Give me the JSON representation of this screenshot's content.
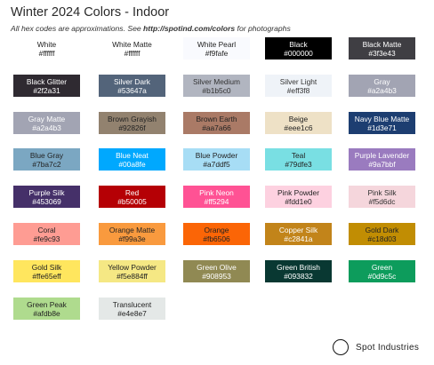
{
  "header": {
    "title": "Winter 2024 Colors - Indoor",
    "subtitle_pre": "All hex codes are approximations. See ",
    "subtitle_link": "http://spotind.com/colors",
    "subtitle_post": " for photographs"
  },
  "swatches": [
    {
      "name": "White",
      "hex": "#ffffff",
      "text": "#222222"
    },
    {
      "name": "White Matte",
      "hex": "#ffffff",
      "text": "#222222"
    },
    {
      "name": "White Pearl",
      "hex": "#f9fafe",
      "text": "#222222"
    },
    {
      "name": "Black",
      "hex": "#000000",
      "text": "#ffffff"
    },
    {
      "name": "Black Matte",
      "hex": "#3f3e43",
      "text": "#ffffff"
    },
    {
      "name": "Black Glitter",
      "hex": "#2f2a31",
      "text": "#ffffff"
    },
    {
      "name": "Silver Dark",
      "hex": "#53647a",
      "text": "#ffffff"
    },
    {
      "name": "Silver Medium",
      "hex": "#b1b5c0",
      "text": "#333333"
    },
    {
      "name": "Silver Light",
      "hex": "#eff3f8",
      "text": "#333333"
    },
    {
      "name": "Gray",
      "hex": "#a2a4b3",
      "text": "#ffffff"
    },
    {
      "name": "Gray Matte",
      "hex": "#a2a4b3",
      "text": "#ffffff"
    },
    {
      "name": "Brown Grayish",
      "hex": "#92826f",
      "text": "#222222"
    },
    {
      "name": "Brown Earth",
      "hex": "#aa7a66",
      "text": "#222222"
    },
    {
      "name": "Beige",
      "hex": "#eee1c6",
      "text": "#222222"
    },
    {
      "name": "Navy Blue Matte",
      "hex": "#1d3e71",
      "text": "#ffffff"
    },
    {
      "name": "Blue Gray",
      "hex": "#7ba7c2",
      "text": "#222222"
    },
    {
      "name": "Blue Neat",
      "hex": "#00a8fe",
      "text": "#ffffff"
    },
    {
      "name": "Blue Powder",
      "hex": "#a7ddf5",
      "text": "#222222"
    },
    {
      "name": "Teal",
      "hex": "#79dfe3",
      "text": "#222222"
    },
    {
      "name": "Purple Lavender",
      "hex": "#9a7bbf",
      "text": "#ffffff"
    },
    {
      "name": "Purple Silk",
      "hex": "#453069",
      "text": "#ffffff"
    },
    {
      "name": "Red",
      "hex": "#b50005",
      "text": "#ffffff"
    },
    {
      "name": "Pink Neon",
      "hex": "#ff5294",
      "text": "#ffffff"
    },
    {
      "name": "Pink Powder",
      "hex": "#fdd1e0",
      "text": "#222222"
    },
    {
      "name": "Pink Silk",
      "hex": "#f5d6dc",
      "text": "#333333"
    },
    {
      "name": "Coral",
      "hex": "#fe9c93",
      "text": "#222222"
    },
    {
      "name": "Orange Matte",
      "hex": "#f99a3e",
      "text": "#222222"
    },
    {
      "name": "Orange",
      "hex": "#fb6506",
      "text": "#222222"
    },
    {
      "name": "Copper Silk",
      "hex": "#c2841a",
      "text": "#ffffff"
    },
    {
      "name": "Gold Dark",
      "hex": "#c18d03",
      "text": "#222222"
    },
    {
      "name": "Gold Silk",
      "hex": "#ffe65eff",
      "text": "#222222"
    },
    {
      "name": "Yellow Powder",
      "hex": "#f5e884ff",
      "text": "#222222"
    },
    {
      "name": "Green Olive",
      "hex": "#908953",
      "text": "#ffffff"
    },
    {
      "name": "Green British",
      "hex": "#093832",
      "text": "#ffffff"
    },
    {
      "name": "Green",
      "hex": "#0d9c5c",
      "text": "#ffffff"
    },
    {
      "name": "Green Peak",
      "hex": "#afdb8e",
      "text": "#222222"
    },
    {
      "name": "Translucent",
      "hex": "#e4e8e7",
      "text": "#222222"
    }
  ],
  "footer": {
    "brand": "Spot Industries"
  }
}
